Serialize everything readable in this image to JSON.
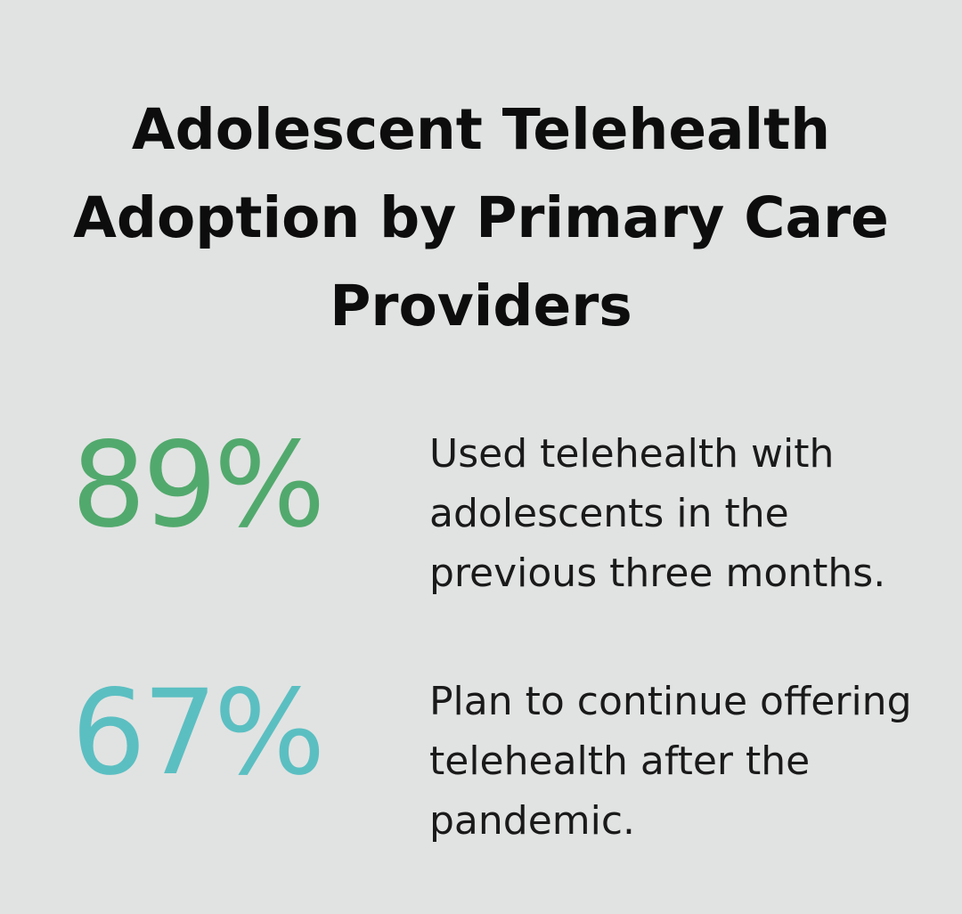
{
  "title": "Adolescent Telehealth Adoption by Primary Care Providers",
  "colors": {
    "background": "#e1e3e2",
    "stat_green": "#52a96d",
    "stat_teal": "#5bbfc2"
  },
  "stats": [
    {
      "value": "89%",
      "description": "Used telehealth with adolescents in the previous three months."
    },
    {
      "value": "67%",
      "description": "Plan to continue offering telehealth after the pandemic."
    }
  ]
}
